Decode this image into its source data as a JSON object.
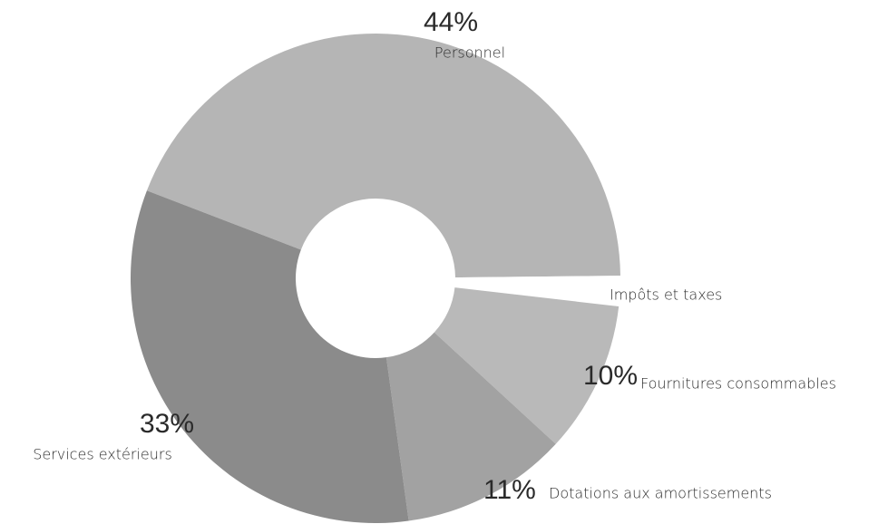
{
  "chart_data": {
    "type": "pie",
    "categories": [
      "Personnel",
      "Impôts et taxes",
      "Fournitures consommables",
      "Dotations aux amortissements",
      "Services extérieurs"
    ],
    "values": [
      44,
      2,
      10,
      11,
      33
    ],
    "value_labels": [
      "44%",
      null,
      "10%",
      "11%",
      "33%"
    ],
    "colors": [
      "#b5b5b5",
      "#ffffff",
      "#b9b9b9",
      "#a2a2a2",
      "#8b8b8b"
    ]
  }
}
